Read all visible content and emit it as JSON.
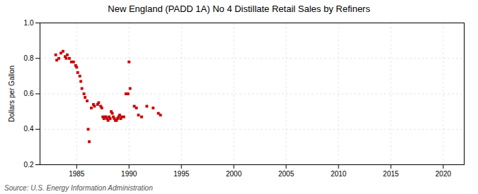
{
  "chart_data": {
    "type": "scatter",
    "title": "New England (PADD 1A) No 4 Distillate Retail Sales by Refiners",
    "ylabel": "Dollars per Gallon",
    "caption": "Source: U.S. Energy Information Administration",
    "color": "#cc0000",
    "marker": "square",
    "grid": true,
    "xlim": [
      1981.5,
      2022
    ],
    "ylim": [
      0.2,
      1.0
    ],
    "xticks": [
      1985,
      1990,
      1995,
      2000,
      2005,
      2010,
      2015,
      2020
    ],
    "yticks": [
      0.2,
      0.4,
      0.6,
      0.8,
      {
        "value": 1.0,
        "label": "1.0"
      }
    ],
    "x": [
      1983.0,
      1983.1,
      1983.3,
      1983.5,
      1983.7,
      1983.9,
      1984.0,
      1984.1,
      1984.3,
      1984.5,
      1984.7,
      1984.9,
      1985.0,
      1985.1,
      1985.3,
      1985.4,
      1985.5,
      1985.7,
      1985.8,
      1986.0,
      1986.1,
      1986.2,
      1986.4,
      1986.6,
      1986.7,
      1987.0,
      1987.1,
      1987.3,
      1987.4,
      1987.5,
      1987.6,
      1987.7,
      1987.8,
      1987.9,
      1988.0,
      1988.1,
      1988.2,
      1988.3,
      1988.4,
      1988.5,
      1988.6,
      1988.7,
      1988.8,
      1988.9,
      1989.0,
      1989.1,
      1989.2,
      1989.3,
      1989.5,
      1989.7,
      1989.9,
      1990.0,
      1990.1,
      1990.5,
      1990.7,
      1990.9,
      1991.2,
      1991.7,
      1992.3,
      1992.8,
      1993.0
    ],
    "values": [
      0.82,
      0.79,
      0.8,
      0.83,
      0.84,
      0.81,
      0.8,
      0.82,
      0.8,
      0.78,
      0.78,
      0.76,
      0.75,
      0.72,
      0.7,
      0.67,
      0.63,
      0.6,
      0.58,
      0.56,
      0.4,
      0.33,
      0.52,
      0.54,
      0.53,
      0.54,
      0.55,
      0.53,
      0.52,
      0.47,
      0.46,
      0.47,
      0.47,
      0.46,
      0.45,
      0.47,
      0.46,
      0.5,
      0.49,
      0.47,
      0.46,
      0.45,
      0.45,
      0.46,
      0.47,
      0.48,
      0.46,
      0.47,
      0.47,
      0.6,
      0.6,
      0.78,
      0.63,
      0.53,
      0.52,
      0.48,
      0.47,
      0.53,
      0.52,
      0.49,
      0.48
    ]
  }
}
